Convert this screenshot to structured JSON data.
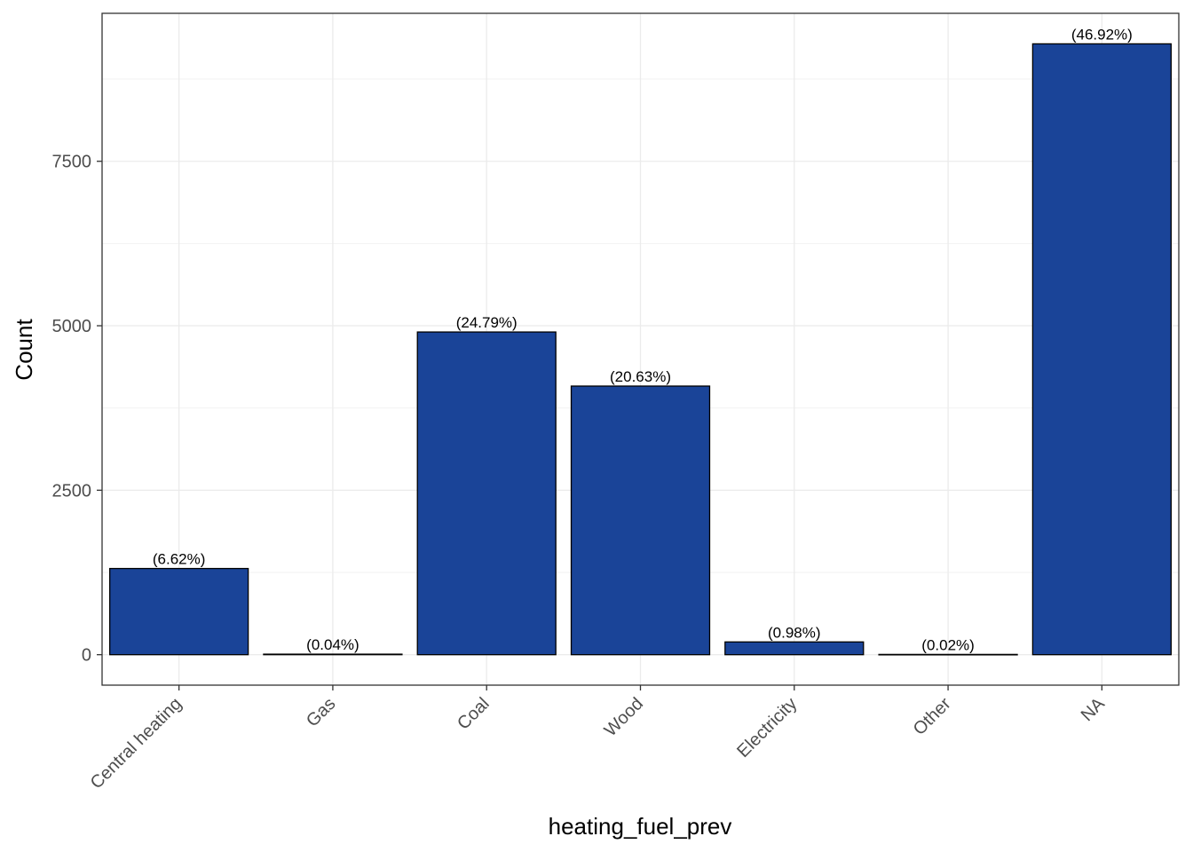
{
  "chart_data": {
    "type": "bar",
    "title": "",
    "xlabel": "heating_fuel_prev",
    "ylabel": "Count",
    "categories": [
      "Central heating",
      "Gas",
      "Coal",
      "Wood",
      "Electricity",
      "Other",
      "NA"
    ],
    "values": [
      1310,
      8,
      4905,
      4083,
      194,
      4,
      9285
    ],
    "data_labels": [
      "(6.62%)",
      "(0.04%)",
      "(24.79%)",
      "(20.63%)",
      "(0.98%)",
      "(0.02%)",
      "(46.92%)"
    ],
    "y_ticks": [
      0,
      2500,
      5000,
      7500
    ],
    "y_tick_labels": [
      "0",
      "2500",
      "5000",
      "7500"
    ],
    "ylim": [
      -463,
      9749
    ],
    "grid": true,
    "legend": "none",
    "colors": {
      "bar_fill": "#1A4498",
      "bar_stroke": "#000000",
      "grid_major": "#EBEBEB",
      "grid_minor": "#F2F2F2",
      "panel_border": "#333333"
    }
  }
}
